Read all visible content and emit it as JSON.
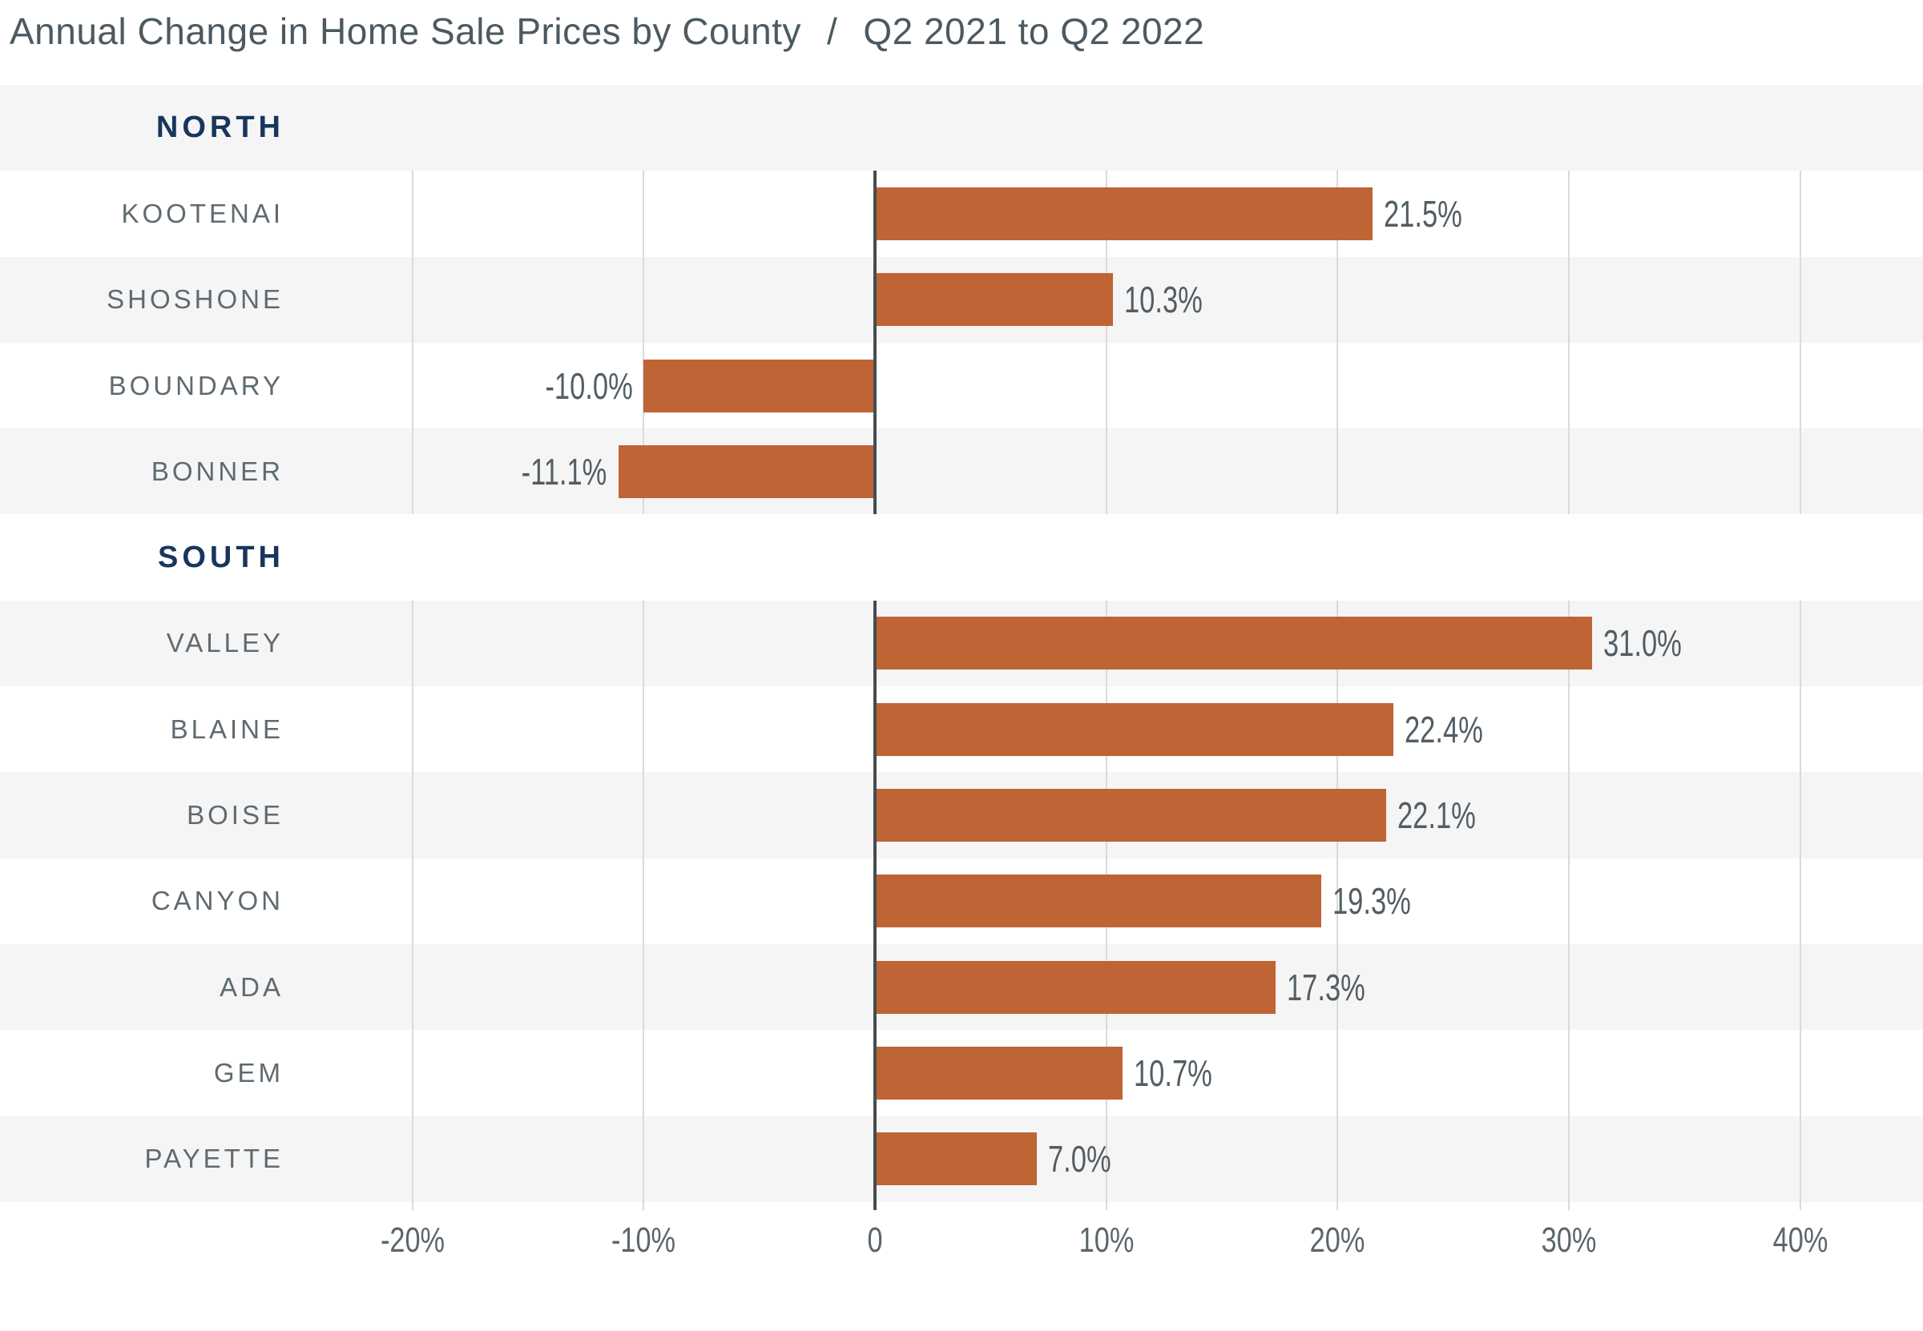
{
  "title": {
    "main": "Annual Change in Home Sale Prices by County",
    "separator": "/",
    "period": "Q2 2021 to Q2 2022"
  },
  "colors": {
    "background": "#ffffff",
    "bar": "#bf6434",
    "band": "#f5f5f6",
    "gridline": "#d9dadb",
    "zero_line": "#454d52",
    "title": "#4d5961",
    "section_label": "#18365c",
    "county_label": "#5f6a71",
    "value_label": "#525d64",
    "axis_label": "#5a656c"
  },
  "chart_data": {
    "type": "bar",
    "orientation": "horizontal",
    "title": "Annual Change in Home Sale Prices by County / Q2 2021 to Q2 2022",
    "unit": "percent",
    "xlabel": "",
    "ylabel": "",
    "x_axis": {
      "tick_values": [
        -20,
        -10,
        0,
        10,
        20,
        30,
        40
      ],
      "tick_labels": [
        "-20%",
        "-10%",
        "0",
        "10%",
        "20%",
        "30%",
        "40%"
      ],
      "range": [
        -20,
        40
      ],
      "gridlines": true
    },
    "legend": "none",
    "rows": [
      {
        "type": "section",
        "label": "NORTH",
        "shaded": true
      },
      {
        "type": "county",
        "label": "KOOTENAI",
        "value": 21.5,
        "value_label": "21.5%",
        "shaded": false
      },
      {
        "type": "county",
        "label": "SHOSHONE",
        "value": 10.3,
        "value_label": "10.3%",
        "shaded": true
      },
      {
        "type": "county",
        "label": "BOUNDARY",
        "value": -10.0,
        "value_label": "-10.0%",
        "shaded": false
      },
      {
        "type": "county",
        "label": "BONNER",
        "value": -11.1,
        "value_label": "-11.1%",
        "shaded": true
      },
      {
        "type": "section",
        "label": "SOUTH",
        "shaded": false
      },
      {
        "type": "county",
        "label": "VALLEY",
        "value": 31.0,
        "value_label": "31.0%",
        "shaded": true
      },
      {
        "type": "county",
        "label": "BLAINE",
        "value": 22.4,
        "value_label": "22.4%",
        "shaded": false
      },
      {
        "type": "county",
        "label": "BOISE",
        "value": 22.1,
        "value_label": "22.1%",
        "shaded": true
      },
      {
        "type": "county",
        "label": "CANYON",
        "value": 19.3,
        "value_label": "19.3%",
        "shaded": false
      },
      {
        "type": "county",
        "label": "ADA",
        "value": 17.3,
        "value_label": "17.3%",
        "shaded": true
      },
      {
        "type": "county",
        "label": "GEM",
        "value": 10.7,
        "value_label": "10.7%",
        "shaded": false
      },
      {
        "type": "county",
        "label": "PAYETTE",
        "value": 7.0,
        "value_label": "7.0%",
        "shaded": true
      }
    ]
  }
}
